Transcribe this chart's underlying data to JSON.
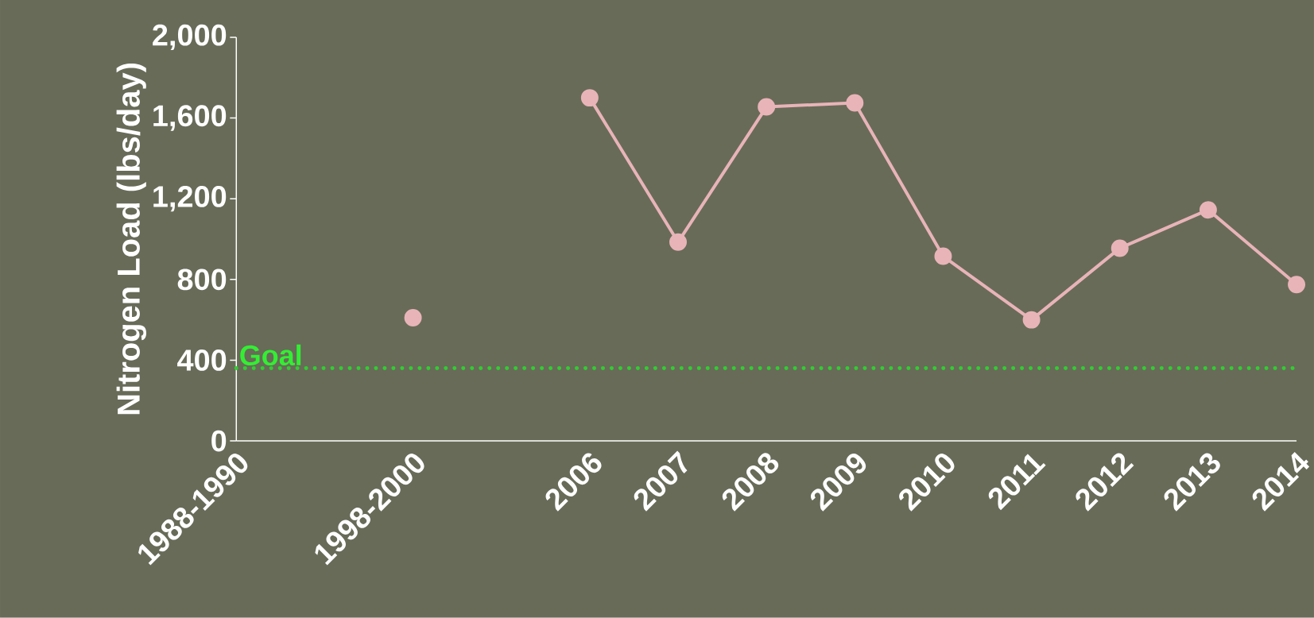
{
  "chart_data": {
    "type": "line",
    "ylabel": "Nitrogen Load (lbs/day)",
    "categories": [
      "1988-1990",
      null,
      "1998-2000",
      null,
      "2006",
      "2007",
      "2008",
      "2009",
      "2010",
      "2011",
      "2012",
      "2013",
      "2014"
    ],
    "series": [
      {
        "color": "#e8b4b8",
        "values": [
          null,
          null,
          610,
          null,
          1700,
          985,
          1655,
          1675,
          915,
          600,
          955,
          1145,
          775
        ]
      }
    ],
    "ylim": [
      0,
      2000
    ],
    "yticks": [
      0,
      400,
      800,
      {
        "value": 1200,
        "label": "1,200"
      },
      {
        "value": 1600,
        "label": "1,600"
      },
      {
        "value": 2000,
        "label": "2,000"
      }
    ],
    "ref_lines": [
      {
        "axis": "y",
        "value": 360,
        "label": "Goal",
        "color": "#33cc33",
        "line_style": "dotted"
      }
    ],
    "grid": false,
    "marker": "circle",
    "line_style": "solid"
  }
}
